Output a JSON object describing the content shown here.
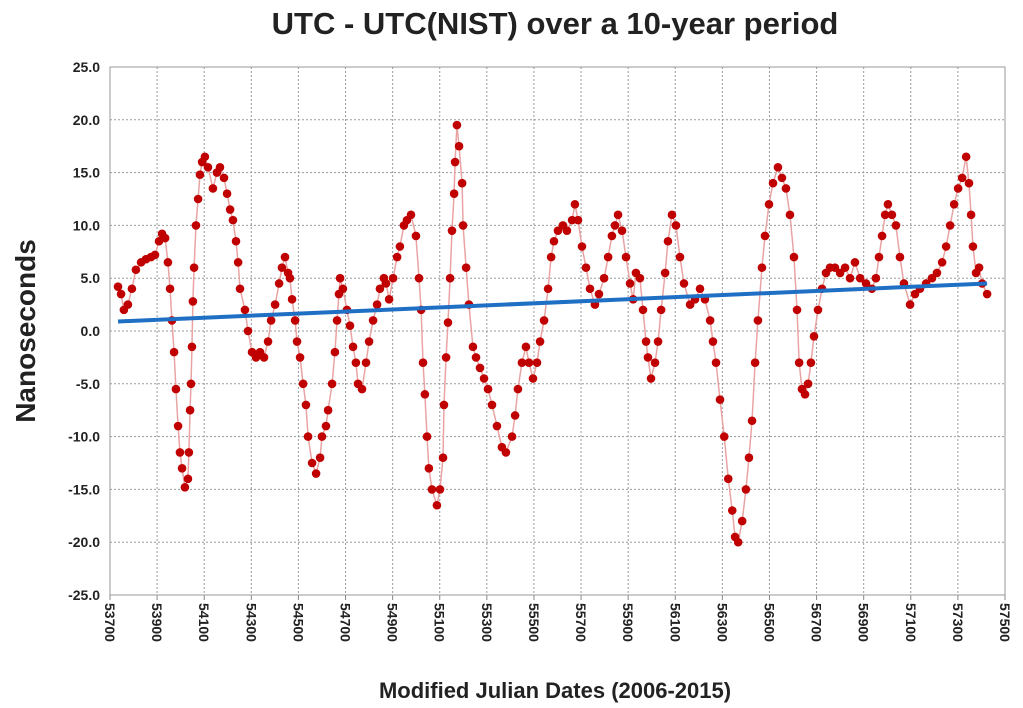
{
  "chart_data": {
    "type": "scatter",
    "title": "UTC - UTC(NIST) over a 10-year period",
    "xlabel": "Modified Julian Dates (2006-2015)",
    "ylabel": "Nanoseconds",
    "xlim": [
      53700,
      57500
    ],
    "xticks": [
      53700,
      53900,
      54100,
      54300,
      54500,
      54700,
      54900,
      55100,
      55300,
      55500,
      55700,
      55900,
      56100,
      56300,
      56500,
      56700,
      56900,
      57100,
      57300,
      57500
    ],
    "ylim": [
      -25,
      25
    ],
    "yticks": [
      {
        "value": -25,
        "label": "-25.0"
      },
      {
        "value": -20,
        "label": "-20.0"
      },
      {
        "value": -15,
        "label": "-15.0"
      },
      {
        "value": -10,
        "label": "-10.0"
      },
      {
        "value": -5,
        "label": "-5.0"
      },
      {
        "value": 0,
        "label": "0.0"
      },
      {
        "value": 5,
        "label": "5.0"
      },
      {
        "value": 10,
        "label": "10.0"
      },
      {
        "value": 15,
        "label": "15.0"
      },
      {
        "value": 20,
        "label": "20.0"
      },
      {
        "value": 25,
        "label": "25.0"
      }
    ],
    "grid": true,
    "series": [
      {
        "color": "#c00000",
        "line_color": "#e9a3a3",
        "markers": true,
        "x": [
          53734,
          53747,
          53759,
          53776,
          53793,
          53810,
          53832,
          53853,
          53874,
          53891,
          53908,
          53921,
          53934,
          53946,
          53955,
          53963,
          53972,
          53980,
          53989,
          53997,
          54006,
          54018,
          54031,
          54035,
          54040,
          54044,
          54048,
          54052,
          54057,
          54065,
          54074,
          54082,
          54091,
          54103,
          54116,
          54137,
          54154,
          54167,
          54184,
          54197,
          54210,
          54222,
          54235,
          54244,
          54252,
          54273,
          54286,
          54303,
          54320,
          54337,
          54354,
          54371,
          54384,
          54401,
          54418,
          54430,
          54443,
          54456,
          54464,
          54473,
          54486,
          54494,
          54507,
          54520,
          54532,
          54541,
          54558,
          54575,
          54592,
          54600,
          54617,
          54626,
          54643,
          54655,
          54664,
          54672,
          54677,
          54689,
          54706,
          54719,
          54732,
          54744,
          54753,
          54770,
          54787,
          54800,
          54817,
          54834,
          54846,
          54863,
          54872,
          54885,
          54902,
          54919,
          54931,
          54948,
          54961,
          54978,
          54999,
          55012,
          55021,
          55029,
          55037,
          55046,
          55054,
          55067,
          55088,
          55101,
          55114,
          55118,
          55127,
          55135,
          55144,
          55152,
          55161,
          55165,
          55173,
          55182,
          55195,
          55199,
          55212,
          55224,
          55241,
          55254,
          55271,
          55288,
          55305,
          55322,
          55343,
          55364,
          55381,
          55407,
          55420,
          55432,
          55449,
          55466,
          55479,
          55496,
          55513,
          55526,
          55543,
          55560,
          55573,
          55585,
          55602,
          55623,
          55640,
          55662,
          55674,
          55687,
          55704,
          55721,
          55738,
          55759,
          55776,
          55798,
          55815,
          55831,
          55844,
          55857,
          55874,
          55891,
          55908,
          55921,
          55933,
          55950,
          55963,
          55976,
          55984,
          55997,
          56014,
          56027,
          56040,
          56057,
          56069,
          56086,
          56103,
          56120,
          56137,
          56163,
          56184,
          56205,
          56226,
          56248,
          56260,
          56273,
          56290,
          56308,
          56325,
          56342,
          56354,
          56367,
          56384,
          56400,
          56413,
          56426,
          56439,
          56451,
          56468,
          56481,
          56498,
          56515,
          56536,
          56553,
          56570,
          56587,
          56604,
          56617,
          56626,
          56638,
          56651,
          56664,
          56676,
          56689,
          56706,
          56723,
          56740,
          56757,
          56778,
          56800,
          56821,
          56842,
          56863,
          56885,
          56910,
          56935,
          56952,
          56965,
          56978,
          56991,
          57003,
          57020,
          57037,
          57054,
          57071,
          57097,
          57118,
          57139,
          57165,
          57190,
          57211,
          57233,
          57250,
          57267,
          57284,
          57301,
          57318,
          57335,
          57347,
          57356,
          57364,
          57377,
          57390,
          57403,
          57424
        ],
        "values": [
          4.2,
          3.5,
          2.0,
          2.5,
          4.0,
          5.8,
          6.5,
          6.8,
          7.0,
          7.2,
          8.5,
          9.2,
          8.8,
          6.5,
          4.0,
          1.0,
          -2.0,
          -5.5,
          -9.0,
          -11.5,
          -13.0,
          -14.8,
          -14.0,
          -11.5,
          -7.5,
          -5.0,
          -1.5,
          2.8,
          6.0,
          10.0,
          12.5,
          14.8,
          16.0,
          16.5,
          15.5,
          13.5,
          15.0,
          15.5,
          14.5,
          13.0,
          11.5,
          10.5,
          8.5,
          6.5,
          4.0,
          2.0,
          0.0,
          -2.0,
          -2.5,
          -2.0,
          -2.5,
          -1.0,
          1.0,
          2.5,
          4.5,
          6.0,
          7.0,
          5.5,
          5.0,
          3.0,
          1.0,
          -1.0,
          -2.5,
          -5.0,
          -7.0,
          -10.0,
          -12.5,
          -13.5,
          -12.0,
          -10.0,
          -9.0,
          -7.5,
          -5.0,
          -2.0,
          1.0,
          3.5,
          5.0,
          4.0,
          2.0,
          0.5,
          -1.5,
          -3.0,
          -5.0,
          -5.5,
          -3.0,
          -1.0,
          1.0,
          2.5,
          4.0,
          5.0,
          4.5,
          3.0,
          5.0,
          7.0,
          8.0,
          10.0,
          10.5,
          11.0,
          9.0,
          5.0,
          2.0,
          -3.0,
          -6.0,
          -10.0,
          -13.0,
          -15.0,
          -16.5,
          -15.0,
          -12.0,
          -7.0,
          -2.5,
          0.8,
          5.0,
          9.5,
          13.0,
          16.0,
          19.5,
          17.5,
          14.0,
          10.0,
          6.0,
          2.5,
          -1.5,
          -2.5,
          -3.5,
          -4.5,
          -5.5,
          -7.0,
          -9.0,
          -11.0,
          -11.5,
          -10.0,
          -8.0,
          -5.5,
          -3.0,
          -1.5,
          -3.0,
          -4.5,
          -3.0,
          -1.0,
          1.0,
          4.0,
          7.0,
          8.5,
          9.5,
          10.0,
          9.5,
          10.5,
          12.0,
          10.5,
          8.0,
          6.0,
          4.0,
          2.5,
          3.5,
          5.0,
          7.0,
          9.0,
          10.0,
          11.0,
          9.5,
          7.0,
          4.5,
          3.0,
          5.5,
          5.0,
          2.0,
          -1.0,
          -2.5,
          -4.5,
          -3.0,
          -1.0,
          2.0,
          5.5,
          8.5,
          11.0,
          10.0,
          7.0,
          4.5,
          2.5,
          3.0,
          4.0,
          3.0,
          1.0,
          -1.0,
          -3.0,
          -6.5,
          -10.0,
          -14.0,
          -17.0,
          -19.5,
          -20.0,
          -18.0,
          -15.0,
          -12.0,
          -8.5,
          -3.0,
          1.0,
          6.0,
          9.0,
          12.0,
          14.0,
          15.5,
          14.5,
          13.5,
          11.0,
          7.0,
          2.0,
          -3.0,
          -5.5,
          -6.0,
          -5.0,
          -3.0,
          -0.5,
          2.0,
          4.0,
          5.5,
          6.0,
          6.0,
          5.5,
          6.0,
          5.0,
          6.5,
          5.0,
          4.5,
          4.0,
          5.0,
          7.0,
          9.0,
          11.0,
          12.0,
          11.0,
          10.0,
          7.0,
          4.5,
          2.5,
          3.5,
          4.0,
          4.5,
          5.0,
          5.5,
          6.5,
          8.0,
          10.0,
          12.0,
          13.5,
          14.5,
          16.5,
          14.0,
          11.0,
          8.0,
          5.5,
          6.0,
          4.5,
          3.5
        ]
      },
      {
        "color": "#1f6fc4",
        "line_color": "#1f6fc4",
        "markers": false,
        "x": [
          53734,
          57424
        ],
        "values": [
          0.9,
          4.5
        ]
      }
    ]
  }
}
